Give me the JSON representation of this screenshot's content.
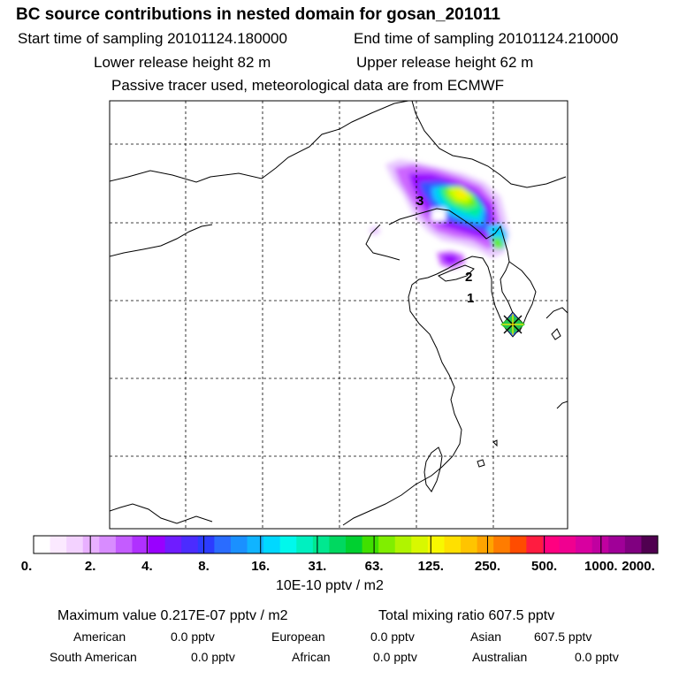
{
  "header": {
    "title": "BC  source contributions in nested domain for gosan_201011",
    "start_label": "Start time of sampling 20101124.180000",
    "end_label": "End time of sampling 20101124.210000",
    "lower_release": "Lower release height   82 m",
    "upper_release": "Upper release height   62 m",
    "tracer_note": "Passive tracer used, meteorological data are from ECMWF"
  },
  "map": {
    "markers": [
      "3",
      "2",
      "1"
    ],
    "receptor_icon": "receptor-star-icon",
    "plume_colors": [
      "#e8c8ff",
      "#cc66ff",
      "#9900ff",
      "#3355ff",
      "#00ccff",
      "#00ee99",
      "#66ee00",
      "#ccff00",
      "#ffee00"
    ]
  },
  "colorbar": {
    "swatches": [
      "#ffffff",
      "#fbe9ff",
      "#f3d2ff",
      "#e8b0ff",
      "#d88cff",
      "#c45cff",
      "#b030ff",
      "#9900ff",
      "#6f1cff",
      "#4b2cff",
      "#2c3cff",
      "#2a6cff",
      "#1a90ff",
      "#10b4ff",
      "#00d8ff",
      "#00f8ec",
      "#00f0c0",
      "#00e890",
      "#00d860",
      "#00d030",
      "#40e000",
      "#80ee00",
      "#b0f400",
      "#d8f800",
      "#f8f800",
      "#ffe000",
      "#ffc400",
      "#ffa400",
      "#ff7c00",
      "#ff4c00",
      "#ff1c40",
      "#ff0080",
      "#f00090",
      "#d800a0",
      "#c000a0",
      "#a00098",
      "#800080",
      "#500050"
    ],
    "labels": [
      "0.",
      "2.",
      "4.",
      "8.",
      "16.",
      "31.",
      "63.",
      "125.",
      "250.",
      "500.",
      "1000.",
      "2000."
    ],
    "units": "10E-10 pptv / m2"
  },
  "summary": {
    "max_value": "Maximum value  0.217E-07 pptv / m2",
    "total_mixing": "Total mixing ratio      607.5 pptv",
    "regions": [
      {
        "name": "American",
        "value": "0.0 pptv"
      },
      {
        "name": "European",
        "value": "0.0 pptv"
      },
      {
        "name": "Asian",
        "value": "607.5 pptv"
      },
      {
        "name": "South American",
        "value": "0.0 pptv"
      },
      {
        "name": "African",
        "value": "0.0 pptv"
      },
      {
        "name": "Australian",
        "value": "0.0 pptv"
      }
    ]
  }
}
